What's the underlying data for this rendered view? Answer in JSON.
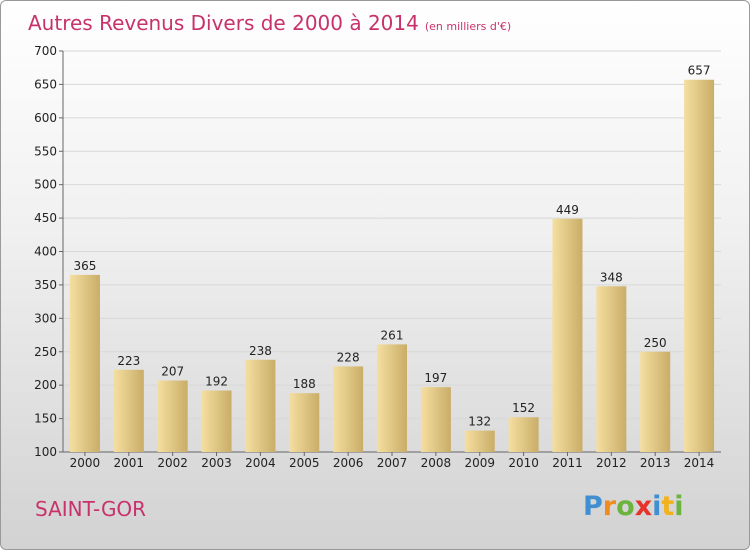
{
  "header": {
    "title": "Autres Revenus Divers de 2000 à 2014",
    "unit": "(en milliers d'€)"
  },
  "footer": {
    "commune": "SAINT-GOR",
    "logo_letters": [
      "P",
      "r",
      "o",
      "x",
      "i",
      "t",
      "i"
    ]
  },
  "chart_data": {
    "type": "bar",
    "title": "Autres Revenus Divers de 2000 à 2014",
    "subtitle": "(en milliers d'€)",
    "xlabel": "",
    "ylabel": "",
    "categories": [
      "2000",
      "2001",
      "2002",
      "2003",
      "2004",
      "2005",
      "2006",
      "2007",
      "2008",
      "2009",
      "2010",
      "2011",
      "2012",
      "2013",
      "2014"
    ],
    "values": [
      365,
      223,
      207,
      192,
      238,
      188,
      228,
      261,
      197,
      132,
      152,
      449,
      348,
      250,
      657
    ],
    "ylim": [
      100,
      700
    ],
    "yticks": [
      100,
      150,
      200,
      250,
      300,
      350,
      400,
      450,
      500,
      550,
      600,
      650,
      700
    ],
    "grid": true,
    "bar_color_light": "#f5dfa0",
    "bar_color_dark": "#c9ad68"
  }
}
